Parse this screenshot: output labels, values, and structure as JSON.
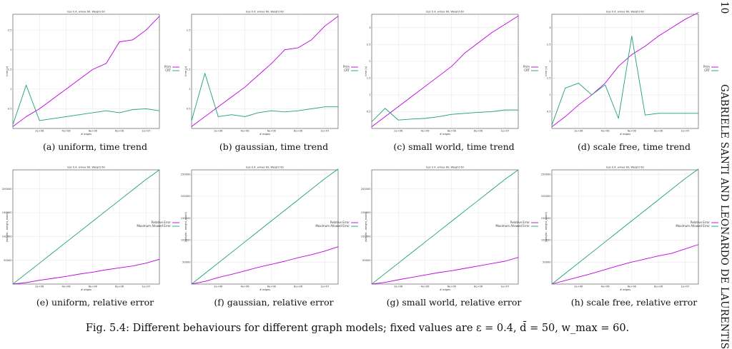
{
  "running_head": {
    "page_number": "10",
    "title": "GABRIELE SANTI AND LEONARDO DE LAURENTIS"
  },
  "caption": "Fig. 5.4: Different behaviours for different graph models; fixed values are ε = 0.4, d̄ = 50, w_max = 60.",
  "colors": {
    "purple": "#c000e0",
    "green": "#1aa079"
  },
  "chart_data": [
    {
      "id": "a",
      "type": "line",
      "subcaption": "(a) uniform, time trend",
      "title": "Eps 0.4, wmax 60, Weight 60",
      "xlabel": "# edges",
      "ylabel": "time (s)",
      "x_ticks": [
        "2e+06",
        "4e+06",
        "6e+06",
        "8e+06",
        "1e+07"
      ],
      "y_ticks": [
        "0.5",
        "1",
        "1.5",
        "2",
        "2.5"
      ],
      "xlim": [
        0,
        11000000
      ],
      "ylim": [
        0,
        2.9
      ],
      "x": [
        0,
        1000000,
        2000000,
        3000000,
        4000000,
        5000000,
        6000000,
        7000000,
        8000000,
        9000000,
        10000000,
        11000000
      ],
      "series": [
        {
          "name": "Prim",
          "color": "#c000e0",
          "values": [
            0.05,
            0.3,
            0.5,
            0.75,
            1.0,
            1.25,
            1.5,
            1.65,
            2.2,
            2.25,
            2.5,
            2.85
          ]
        },
        {
          "name": "CRT",
          "color": "#1aa079",
          "values": [
            0.1,
            1.1,
            0.2,
            0.25,
            0.3,
            0.35,
            0.4,
            0.45,
            0.4,
            0.48,
            0.5,
            0.45
          ]
        }
      ]
    },
    {
      "id": "b",
      "type": "line",
      "subcaption": "(b) gaussian, time trend",
      "title": "Eps 0.4, wmax 60, Weight 60",
      "xlabel": "# edges",
      "ylabel": "time (s)",
      "x_ticks": [
        "2e+06",
        "4e+06",
        "6e+06",
        "8e+06",
        "1e+07"
      ],
      "y_ticks": [
        "0.5",
        "1",
        "1.5",
        "2",
        "2.5"
      ],
      "xlim": [
        0,
        11000000
      ],
      "ylim": [
        0,
        2.9
      ],
      "x": [
        0,
        1000000,
        2000000,
        3000000,
        4000000,
        5000000,
        6000000,
        7000000,
        8000000,
        9000000,
        10000000,
        11000000
      ],
      "series": [
        {
          "name": "Prim",
          "color": "#c000e0",
          "values": [
            0.05,
            0.3,
            0.55,
            0.8,
            1.05,
            1.35,
            1.65,
            2.0,
            2.05,
            2.25,
            2.6,
            2.85
          ]
        },
        {
          "name": "CRT",
          "color": "#1aa079",
          "values": [
            0.2,
            1.4,
            0.3,
            0.35,
            0.3,
            0.4,
            0.45,
            0.42,
            0.45,
            0.5,
            0.55,
            0.55
          ]
        }
      ]
    },
    {
      "id": "c",
      "type": "line",
      "subcaption": "(c) small world, time trend",
      "title": "Eps 0.4, wmax 60, Weight 60",
      "xlabel": "# edges",
      "ylabel": "time (s)",
      "x_ticks": [
        "2e+06",
        "4e+06",
        "6e+06",
        "8e+06",
        "1e+07"
      ],
      "y_ticks": [
        "0.5",
        "1",
        "1.5",
        "2",
        "2.5",
        "3"
      ],
      "xlim": [
        0,
        11000000
      ],
      "ylim": [
        0,
        3.4
      ],
      "x": [
        0,
        1000000,
        2000000,
        3000000,
        4000000,
        5000000,
        6000000,
        7000000,
        8000000,
        9000000,
        10000000,
        11000000
      ],
      "series": [
        {
          "name": "Prim",
          "color": "#c000e0",
          "values": [
            0.05,
            0.35,
            0.65,
            0.95,
            1.25,
            1.55,
            1.85,
            2.25,
            2.55,
            2.85,
            3.1,
            3.35
          ]
        },
        {
          "name": "CRT",
          "color": "#1aa079",
          "values": [
            0.2,
            0.6,
            0.25,
            0.28,
            0.3,
            0.35,
            0.42,
            0.45,
            0.48,
            0.5,
            0.55,
            0.55
          ]
        }
      ]
    },
    {
      "id": "d",
      "type": "line",
      "subcaption": "(d) scale free, time trend",
      "title": "Eps 0.4, wmax 60, Weight 60",
      "xlabel": "# edges",
      "ylabel": "time (s)",
      "x_ticks": [
        "2e+06",
        "4e+06",
        "6e+06",
        "8e+06",
        "1e+07"
      ],
      "y_ticks": [
        "0.5",
        "1",
        "1.5",
        "2",
        "2.5",
        "3"
      ],
      "xlim": [
        0,
        11000000
      ],
      "ylim": [
        0,
        3.4
      ],
      "x": [
        0,
        1000000,
        2000000,
        3000000,
        4000000,
        5000000,
        6000000,
        7000000,
        8000000,
        9000000,
        10000000,
        11000000
      ],
      "series": [
        {
          "name": "Prim",
          "color": "#c000e0",
          "values": [
            0.05,
            0.35,
            0.7,
            1.0,
            1.35,
            1.85,
            2.2,
            2.45,
            2.75,
            3.0,
            3.25,
            3.45
          ]
        },
        {
          "name": "CRT",
          "color": "#1aa079",
          "values": [
            0.1,
            1.2,
            1.35,
            1.0,
            1.3,
            0.3,
            2.75,
            0.4,
            0.45,
            0.45,
            0.45,
            0.45
          ]
        }
      ]
    },
    {
      "id": "e",
      "type": "line",
      "subcaption": "(e) uniform, relative error",
      "title": "Eps 0.4, wmax 60, Weight 60",
      "xlabel": "# edges",
      "ylabel": "|weight - weight_exact|",
      "x_ticks": [
        "2e+06",
        "4e+06",
        "6e+06",
        "8e+06",
        "1e+07"
      ],
      "y_ticks": [
        "50000",
        "100000",
        "150000",
        "200000"
      ],
      "xlim": [
        0,
        11000000
      ],
      "ylim": [
        0,
        240000
      ],
      "x": [
        0,
        1000000,
        2000000,
        3000000,
        4000000,
        5000000,
        6000000,
        7000000,
        8000000,
        9000000,
        10000000,
        11000000
      ],
      "series": [
        {
          "name": "Relative Error",
          "color": "#c000e0",
          "values": [
            0,
            3000,
            8000,
            12000,
            16000,
            21000,
            25000,
            30000,
            34000,
            38000,
            44000,
            52000
          ]
        },
        {
          "name": "Maximum Allowed Error",
          "color": "#1aa079",
          "values": [
            0,
            22000,
            44000,
            66000,
            88000,
            110000,
            132000,
            154000,
            176000,
            198000,
            220000,
            240000
          ]
        }
      ]
    },
    {
      "id": "f",
      "type": "line",
      "subcaption": "(f) gaussian, relative error",
      "title": "Eps 0.4, wmax 60, Weight 60",
      "xlabel": "# edges",
      "ylabel": "|weight - weight_exact|",
      "x_ticks": [
        "2e+06",
        "4e+06",
        "6e+06",
        "8e+06",
        "1e+07"
      ],
      "y_ticks": [
        "50000",
        "100000",
        "150000",
        "200000",
        "250000"
      ],
      "xlim": [
        0,
        11000000
      ],
      "ylim": [
        0,
        260000
      ],
      "x": [
        0,
        1000000,
        2000000,
        3000000,
        4000000,
        5000000,
        6000000,
        7000000,
        8000000,
        9000000,
        10000000,
        11000000
      ],
      "series": [
        {
          "name": "Relative Error",
          "color": "#c000e0",
          "values": [
            0,
            6000,
            15000,
            22000,
            30000,
            38000,
            45000,
            52000,
            60000,
            67000,
            75000,
            85000
          ]
        },
        {
          "name": "Maximum Allowed Error",
          "color": "#1aa079",
          "values": [
            0,
            24000,
            48000,
            72000,
            96000,
            120000,
            144000,
            168000,
            192000,
            216000,
            240000,
            262000
          ]
        }
      ]
    },
    {
      "id": "g",
      "type": "line",
      "subcaption": "(g) small world, relative error",
      "title": "Eps 0.4, wmax 60, Weight 60",
      "xlabel": "# edges",
      "ylabel": "|weight - weight_exact|",
      "x_ticks": [
        "2e+06",
        "4e+06",
        "6e+06",
        "8e+06",
        "1e+07"
      ],
      "y_ticks": [
        "50000",
        "100000",
        "150000",
        "200000"
      ],
      "xlim": [
        0,
        11000000
      ],
      "ylim": [
        0,
        240000
      ],
      "x": [
        0,
        1000000,
        2000000,
        3000000,
        4000000,
        5000000,
        6000000,
        7000000,
        8000000,
        9000000,
        10000000,
        11000000
      ],
      "series": [
        {
          "name": "Relative Error",
          "color": "#c000e0",
          "values": [
            0,
            3500,
            9000,
            14000,
            19000,
            24000,
            28000,
            33000,
            38000,
            43000,
            48000,
            56000
          ]
        },
        {
          "name": "Maximum Allowed Error",
          "color": "#1aa079",
          "values": [
            0,
            22000,
            44000,
            66000,
            88000,
            110000,
            132000,
            154000,
            176000,
            198000,
            220000,
            240000
          ]
        }
      ]
    },
    {
      "id": "h",
      "type": "line",
      "subcaption": "(h) scale free, relative error",
      "title": "Eps 0.4, wmax 60, Weight 60",
      "xlabel": "# edges",
      "ylabel": "|weight - weight_exact|",
      "x_ticks": [
        "2e+06",
        "4e+06",
        "6e+06",
        "8e+06",
        "1e+07"
      ],
      "y_ticks": [
        "50000",
        "100000",
        "150000",
        "200000",
        "250000"
      ],
      "xlim": [
        0,
        11000000
      ],
      "ylim": [
        0,
        260000
      ],
      "x": [
        0,
        1000000,
        2000000,
        3000000,
        4000000,
        5000000,
        6000000,
        7000000,
        8000000,
        9000000,
        10000000,
        11000000
      ],
      "series": [
        {
          "name": "Relative Error",
          "color": "#c000e0",
          "values": [
            0,
            8000,
            16000,
            24000,
            33000,
            42000,
            50000,
            57000,
            64000,
            70000,
            80000,
            90000
          ]
        },
        {
          "name": "Maximum Allowed Error",
          "color": "#1aa079",
          "values": [
            0,
            24000,
            48000,
            72000,
            96000,
            120000,
            144000,
            168000,
            192000,
            216000,
            240000,
            262000
          ]
        }
      ]
    }
  ]
}
